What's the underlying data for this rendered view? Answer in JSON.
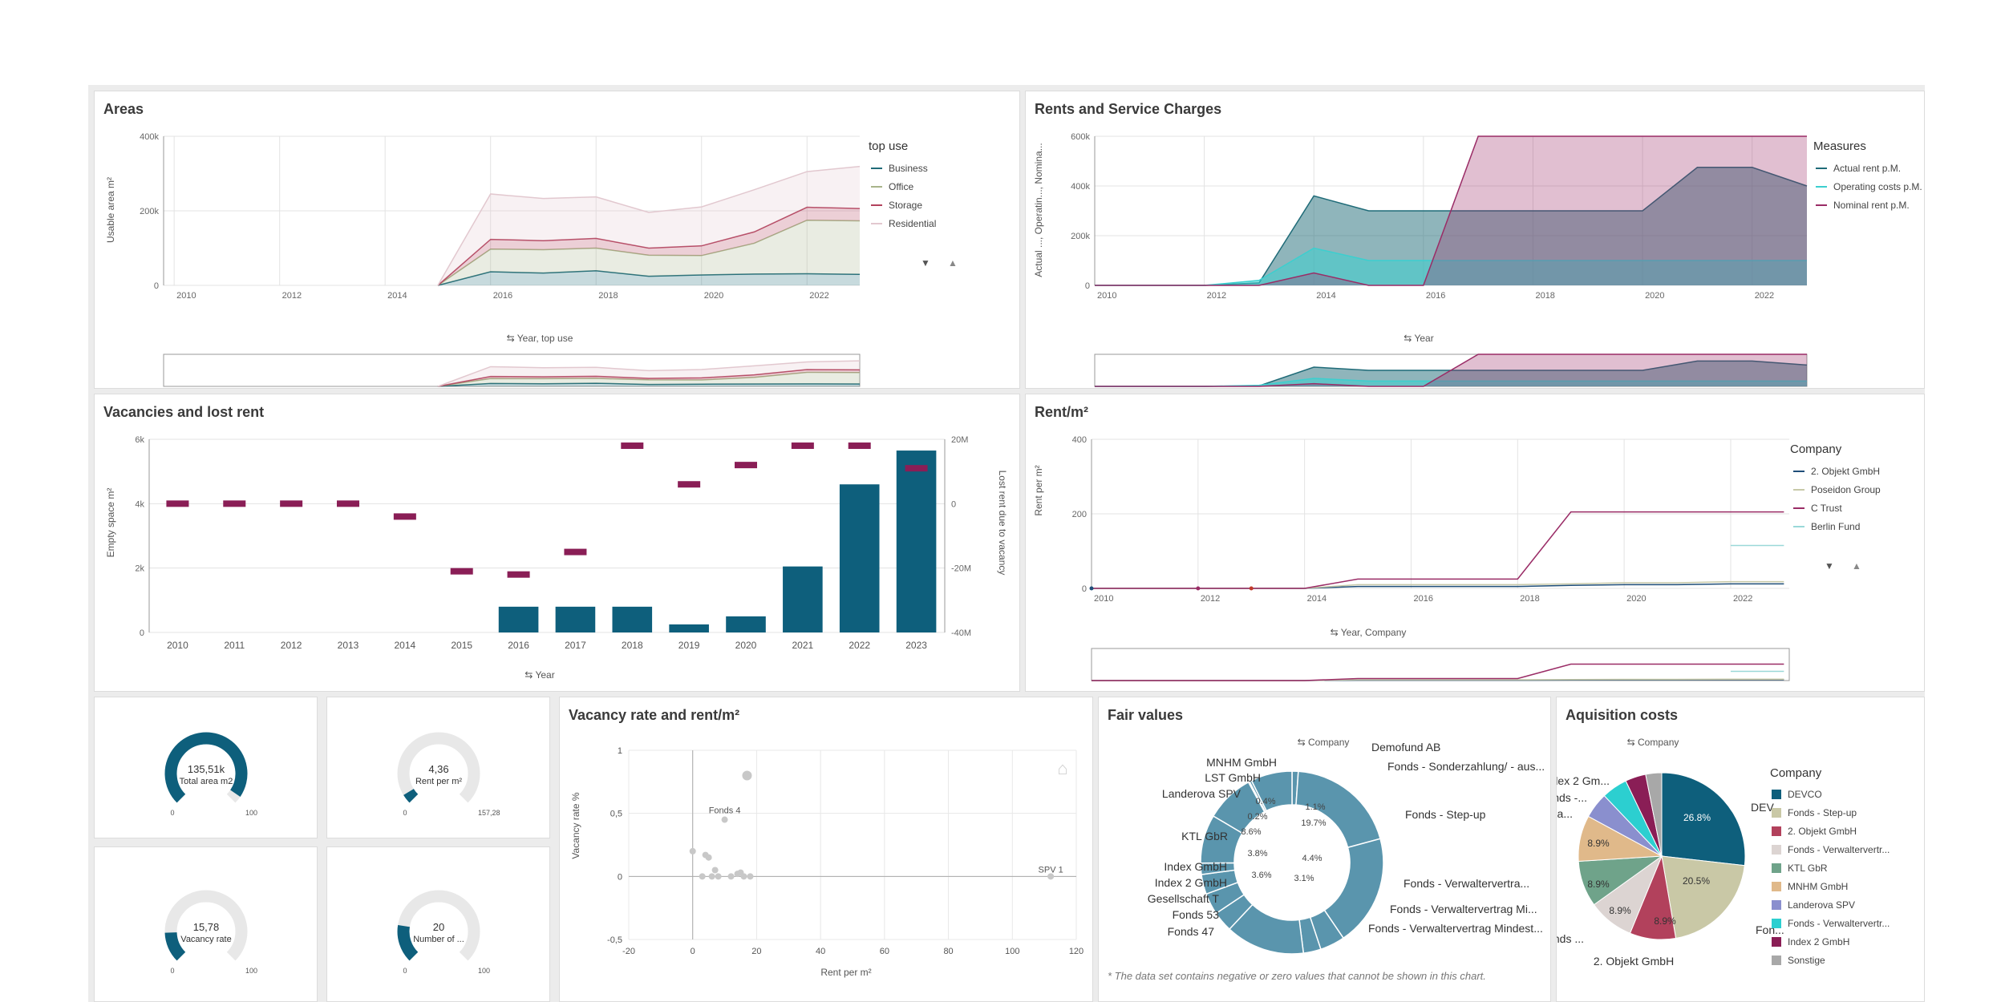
{
  "areas": {
    "title": "Areas",
    "y_title": "Usable area m²",
    "dim_label": "Year, top use",
    "legend_title": "top use",
    "y_ticks": [
      "0",
      "200k",
      "400k"
    ],
    "x_ticks": [
      "2010",
      "2012",
      "2014",
      "2016",
      "2018",
      "2020",
      "2022"
    ],
    "legend": [
      {
        "label": "Business",
        "color": "#1f6b78"
      },
      {
        "label": "Office",
        "color": "#a8b48a"
      },
      {
        "label": "Storage",
        "color": "#b2415c"
      },
      {
        "label": "Residential",
        "color": "#e2c8cf"
      }
    ]
  },
  "rents": {
    "title": "Rents and Service Charges",
    "y_title": "Actual ..., Operatin..., Nomina...",
    "dim_label": "Year",
    "legend_title": "Measures",
    "y_ticks": [
      "0",
      "200k",
      "400k",
      "600k"
    ],
    "x_ticks": [
      "2010",
      "2012",
      "2014",
      "2016",
      "2018",
      "2020",
      "2022"
    ],
    "legend": [
      {
        "label": "Actual rent p.M.",
        "color": "#1f6b78"
      },
      {
        "label": "Operating costs p.M.",
        "color": "#3ccfcf"
      },
      {
        "label": "Nominal rent p.M.",
        "color": "#9a2c66"
      }
    ]
  },
  "vacancies": {
    "title": "Vacancies and lost rent",
    "y_title": "Empty space m²",
    "y2_title": "Lost rent due to vacancy",
    "dim_label": "Year",
    "y_ticks": [
      "0",
      "2k",
      "4k",
      "6k"
    ],
    "y2_ticks": [
      "-40M",
      "-20M",
      "0",
      "20M"
    ]
  },
  "rentm2": {
    "title": "Rent/m²",
    "y_title": "Rent per m²",
    "dim_label": "Year, Company",
    "legend_title": "Company",
    "y_ticks": [
      "0",
      "200",
      "400"
    ],
    "x_ticks": [
      "2010",
      "2012",
      "2014",
      "2016",
      "2018",
      "2020",
      "2022"
    ],
    "legend": [
      {
        "label": "2. Objekt GmbH",
        "color": "#1f4e79"
      },
      {
        "label": "Poseidon Group",
        "color": "#c7c9a8"
      },
      {
        "label": "C Trust",
        "color": "#9a2c66"
      },
      {
        "label": "Berlin Fund",
        "color": "#9ad8d8"
      }
    ]
  },
  "kpis": [
    {
      "value": "135,51k",
      "label": "Total area m2",
      "min": "0",
      "max": "100"
    },
    {
      "value": "4,36",
      "label": "Rent per m²",
      "min": "0",
      "max": "157,28"
    },
    {
      "value": "15,78",
      "label": "Vacancy rate",
      "min": "0",
      "max": "100"
    },
    {
      "value": "20",
      "label": "Number of ...",
      "min": "0",
      "max": "100"
    }
  ],
  "scatter": {
    "title": "Vacancy rate and rent/m²",
    "x_title": "Rent per m²",
    "y_title": "Vacancy rate %",
    "x_ticks": [
      "-20",
      "0",
      "20",
      "40",
      "60",
      "80",
      "100",
      "120"
    ],
    "y_ticks": [
      "1",
      "0,5",
      "0",
      "-0,5"
    ],
    "labels": [
      {
        "text": "Fonds 4"
      },
      {
        "text": "SPV 1"
      }
    ]
  },
  "fair": {
    "title": "Fair values",
    "dim_label": "Company",
    "footnote": "* The data set contains negative or zero values that cannot be shown in this chart.",
    "labels": [
      "Demofund AB",
      "Fonds - Sonderzahlung/ - aus...",
      "Fonds - Step-up",
      "Fonds - Verwaltervertra...",
      "Fonds - Verwaltervertrag Mi...",
      "Fonds - Verwaltervertrag Mindest...",
      "MNHM GmbH",
      "LST GmbH",
      "Landerova SPV",
      "KTL GbR",
      "Index GmbH",
      "Index 2 GmbH",
      "Gesellschaft T",
      "Fonds 53",
      "Fonds 47"
    ],
    "pcts": [
      "0.4%",
      "1.1%",
      "0.2%",
      "19.7%",
      "8.6%",
      "3.8%",
      "4.4%",
      "3.6%",
      "3.1%"
    ]
  },
  "acq": {
    "title": "Aquisition costs",
    "dim_label": "Company",
    "legend_title": "Company",
    "legend": [
      {
        "label": "DEVCO",
        "color": "#0e5f7c"
      },
      {
        "label": "Fonds - Step-up",
        "color": "#c9c8a6"
      },
      {
        "label": "2. Objekt GmbH",
        "color": "#b2415c"
      },
      {
        "label": "Fonds - Verwaltervertr...",
        "color": "#dcd4d2"
      },
      {
        "label": "KTL GbR",
        "color": "#6fa38a"
      },
      {
        "label": "MNHM GmbH",
        "color": "#e0b98a"
      },
      {
        "label": "Landerova SPV",
        "color": "#8a8fce"
      },
      {
        "label": "Fonds - Verwaltervertr...",
        "color": "#2ccfd0"
      },
      {
        "label": "Index 2 GmbH",
        "color": "#8a1e56"
      },
      {
        "label": "Sonstige",
        "color": "#a8a8a8"
      }
    ],
    "labels": [
      "Index 2 Gm...",
      "Fonds -...",
      "La...",
      "DEV...",
      "Fon...",
      "Fonds ...",
      "2. Objekt GmbH"
    ],
    "pcts": [
      "26.8%",
      "20.5%",
      "8.9%",
      "8.9%",
      "8.9%",
      "8.9%"
    ]
  },
  "chart_data": [
    {
      "type": "area",
      "title": "Areas",
      "xlabel": "Year",
      "ylabel": "Usable area m²",
      "ylim": [
        0,
        400000
      ],
      "x": [
        2015,
        2016,
        2017,
        2018,
        2019,
        2020,
        2021,
        2022,
        2023
      ],
      "series": [
        {
          "name": "Business",
          "values": [
            0,
            42000,
            38000,
            45000,
            28000,
            32000,
            35000,
            36000,
            34000
          ]
        },
        {
          "name": "Office",
          "values": [
            0,
            70000,
            72000,
            70000,
            65000,
            60000,
            95000,
            165000,
            165000
          ]
        },
        {
          "name": "Storage",
          "values": [
            0,
            30000,
            28000,
            30000,
            22000,
            30000,
            35000,
            40000,
            38000
          ]
        },
        {
          "name": "Residential",
          "values": [
            0,
            140000,
            130000,
            128000,
            110000,
            120000,
            130000,
            110000,
            130000
          ]
        }
      ]
    },
    {
      "type": "area",
      "title": "Rents and Service Charges",
      "xlabel": "Year",
      "ylim": [
        0,
        600000
      ],
      "x": [
        2010,
        2011,
        2012,
        2013,
        2014,
        2015,
        2016,
        2017,
        2018,
        2019,
        2020,
        2021,
        2022,
        2023
      ],
      "series": [
        {
          "name": "Actual rent p.M.",
          "values": [
            0,
            0,
            0,
            10000,
            360000,
            300000,
            300000,
            300000,
            300000,
            300000,
            300000,
            475000,
            475000,
            400000
          ]
        },
        {
          "name": "Operating costs p.M.",
          "values": [
            0,
            0,
            0,
            20000,
            150000,
            100000,
            100000,
            100000,
            100000,
            100000,
            100000,
            100000,
            100000,
            100000
          ]
        },
        {
          "name": "Nominal rent p.M.",
          "values": [
            0,
            0,
            0,
            0,
            50000,
            0,
            0,
            600000,
            600000,
            600000,
            600000,
            600000,
            600000,
            600000
          ]
        }
      ]
    },
    {
      "type": "bar",
      "title": "Vacancies and lost rent",
      "categories": [
        "2010",
        "2011",
        "2012",
        "2013",
        "2014",
        "2015",
        "2016",
        "2017",
        "2018",
        "2019",
        "2020",
        "2021",
        "2022",
        "2023"
      ],
      "series": [
        {
          "name": "Empty space m²",
          "values": [
            0,
            0,
            0,
            0,
            0,
            0,
            800,
            800,
            800,
            250,
            500,
            2050,
            4600,
            5650
          ]
        },
        {
          "name": "Lost rent due to vacancy",
          "values": [
            0,
            0,
            0,
            0,
            -4000000,
            -21000000,
            -22000000,
            -15000000,
            18000000,
            6000000,
            12000000,
            18000000,
            18000000,
            11000000
          ]
        }
      ],
      "ylim": [
        0,
        6000
      ],
      "y2lim": [
        -40000000,
        20000000
      ]
    },
    {
      "type": "line",
      "title": "Rent/m²",
      "xlabel": "Year",
      "ylabel": "Rent per m²",
      "ylim": [
        0,
        400
      ],
      "x": [
        2010,
        2011,
        2012,
        2013,
        2014,
        2015,
        2016,
        2017,
        2018,
        2019,
        2020,
        2021,
        2022,
        2023
      ],
      "series": [
        {
          "name": "2. Objekt GmbH",
          "values": [
            0,
            0,
            0,
            0,
            0,
            5,
            5,
            5,
            5,
            8,
            10,
            10,
            12,
            12
          ]
        },
        {
          "name": "Poseidon Group",
          "values": [
            0,
            0,
            0,
            0,
            0,
            10,
            10,
            10,
            10,
            12,
            15,
            15,
            18,
            18
          ]
        },
        {
          "name": "C Trust",
          "values": [
            0,
            0,
            0,
            0,
            0,
            25,
            25,
            25,
            25,
            205,
            205,
            205,
            205,
            205
          ]
        },
        {
          "name": "Berlin Fund",
          "values": [
            null,
            null,
            null,
            null,
            null,
            null,
            null,
            null,
            null,
            null,
            null,
            null,
            115,
            115
          ]
        }
      ]
    },
    {
      "type": "scatter",
      "title": "Vacancy rate and rent/m²",
      "xlabel": "Rent per m²",
      "ylabel": "Vacancy rate %",
      "xlim": [
        -20,
        120
      ],
      "ylim": [
        -0.5,
        1
      ],
      "points": [
        [
          0,
          0.2
        ],
        [
          3,
          0
        ],
        [
          4,
          0.17
        ],
        [
          5,
          0.15
        ],
        [
          6,
          0
        ],
        [
          7,
          0.05
        ],
        [
          8,
          0
        ],
        [
          10,
          0.45
        ],
        [
          12,
          0
        ],
        [
          14,
          0.02
        ],
        [
          15,
          0.03
        ],
        [
          16,
          0
        ],
        [
          17,
          0.8
        ],
        [
          18,
          0
        ],
        [
          112,
          0
        ]
      ]
    },
    {
      "type": "pie",
      "title": "Fair values",
      "categories": [
        "Demofund AB",
        "Fonds - Sonderzahlung/ - aus...",
        "Fonds - Step-up",
        "Fonds - Verwaltervertra...",
        "Fonds - Verwaltervertrag Mi...",
        "Fonds - Verwaltervertrag Mindest...",
        "Fonds 47",
        "Fonds 53",
        "Gesellschaft T",
        "Index 2 GmbH",
        "Index GmbH",
        "KTL GbR",
        "Landerova SPV",
        "LST GmbH",
        "MNHM GmbH"
      ],
      "values": [
        1.1,
        19.7,
        19.7,
        4.4,
        3.1,
        14.0,
        3.6,
        3.8,
        3.5,
        2.0,
        8.6,
        8.6,
        0.2,
        0.4,
        7.3
      ]
    },
    {
      "type": "pie",
      "title": "Aquisition costs",
      "categories": [
        "DEVCO",
        "Fonds - Step-up",
        "2. Objekt GmbH",
        "Fonds - Verwaltervertr...",
        "KTL GbR",
        "MNHM GmbH",
        "Landerova SPV",
        "Fonds - Verwaltervertr...",
        "Index 2 GmbH",
        "Sonstige"
      ],
      "values": [
        26.8,
        20.5,
        8.9,
        8.9,
        8.9,
        8.9,
        5.0,
        5.0,
        4.0,
        3.1
      ]
    }
  ]
}
